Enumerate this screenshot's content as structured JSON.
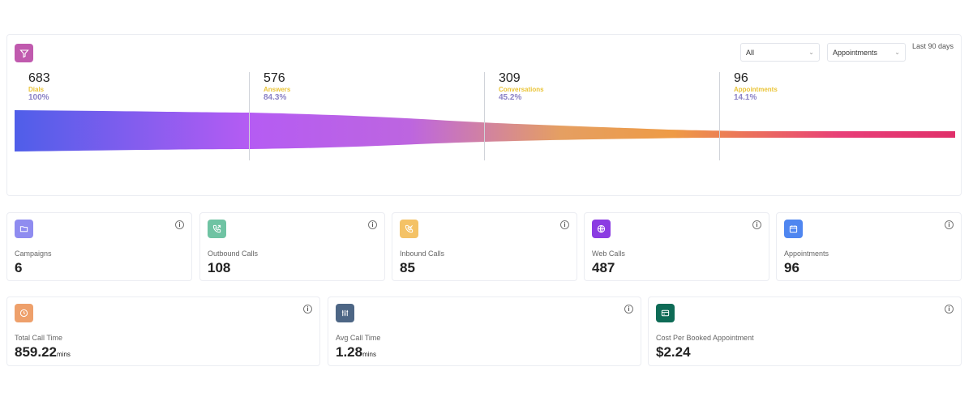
{
  "funnel": {
    "icon": "filter-icon",
    "filters": {
      "scope": "All",
      "target": "Appointments"
    },
    "range": "Last 90 days",
    "stages": [
      {
        "value": "683",
        "label": "Dials",
        "percent": "100%"
      },
      {
        "value": "576",
        "label": "Answers",
        "percent": "84.3%"
      },
      {
        "value": "309",
        "label": "Conversations",
        "percent": "45.2%"
      },
      {
        "value": "96",
        "label": "Appointments",
        "percent": "14.1%"
      }
    ],
    "gradient": [
      "#4f5ee9",
      "#b55cf3",
      "#bd65e0",
      "#e59f62",
      "#ee9b45",
      "#e83e78",
      "#e0306a"
    ]
  },
  "stats": [
    {
      "title": "Campaigns",
      "value": "6",
      "icon": "folder-icon",
      "color": "#8f8cf0"
    },
    {
      "title": "Outbound Calls",
      "value": "108",
      "icon": "phone-outgoing-icon",
      "color": "#6fc3a3"
    },
    {
      "title": "Inbound Calls",
      "value": "85",
      "icon": "phone-incoming-icon",
      "color": "#f4c266"
    },
    {
      "title": "Web Calls",
      "value": "487",
      "icon": "globe-icon",
      "color": "#8b3ce2"
    },
    {
      "title": "Appointments",
      "value": "96",
      "icon": "calendar-icon",
      "color": "#4f86f0"
    }
  ],
  "metrics": [
    {
      "title": "Total Call Time",
      "value": "859.22",
      "unit": "mins",
      "icon": "clock-icon",
      "color": "#eea06b"
    },
    {
      "title": "Avg Call Time",
      "value": "1.28",
      "unit": "mins",
      "icon": "sliders-icon",
      "color": "#4d6685"
    },
    {
      "title": "Cost Per Booked Appointment",
      "value": "$2.24",
      "unit": "",
      "icon": "credit-card-icon",
      "color": "#0e6b56"
    }
  ],
  "info_glyph": "i"
}
